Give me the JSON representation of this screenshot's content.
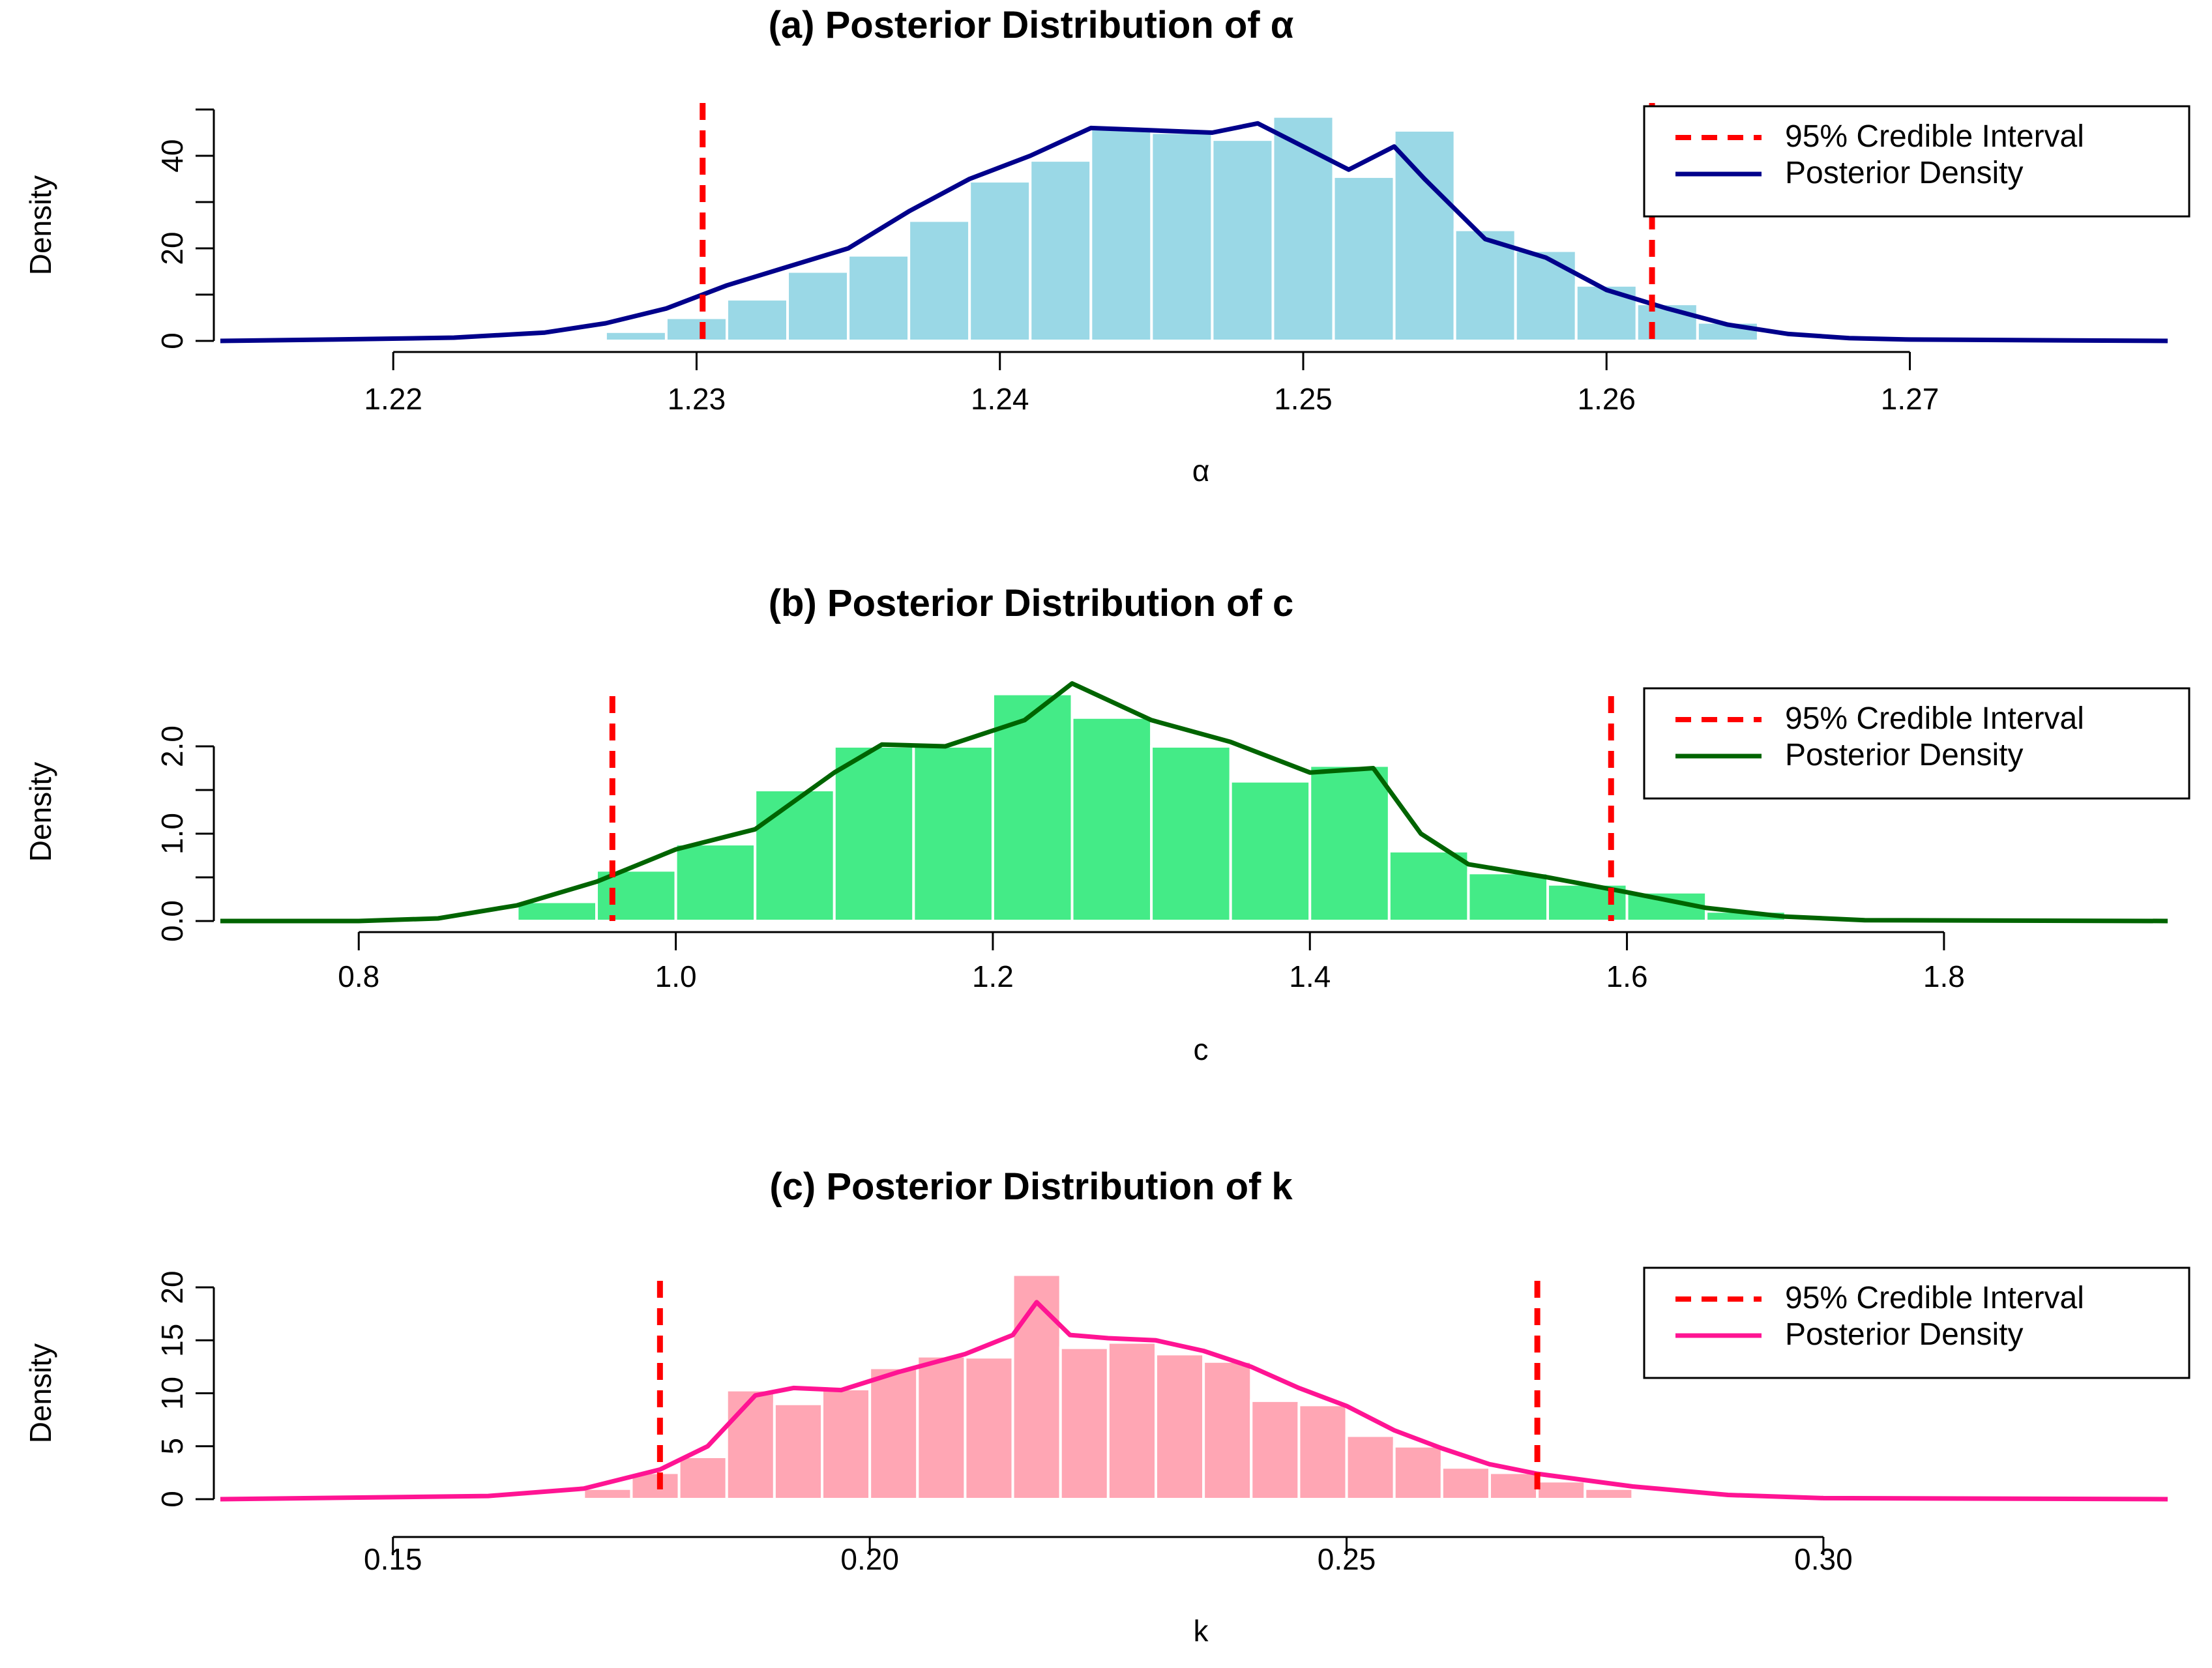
{
  "chart_data": [
    {
      "type": "histogram",
      "title": "(a) Posterior Distribution of α",
      "xlabel": "α",
      "ylabel": "Density",
      "xlim": [
        1.2143,
        1.2785
      ],
      "ylim": [
        0,
        50
      ],
      "xticks": [
        1.22,
        1.23,
        1.24,
        1.25,
        1.26,
        1.27
      ],
      "xtick_labels": [
        "1.22",
        "1.23",
        "1.24",
        "1.25",
        "1.26",
        "1.27"
      ],
      "yticks": [
        0,
        10,
        20,
        30,
        40,
        50
      ],
      "ytick_labels": [
        "0",
        "",
        "20",
        "",
        "40",
        ""
      ],
      "bar_color": "#9ad8e6",
      "line_color": "#00008b",
      "ci_color": "#ff0000",
      "bin_edges": [
        1.225,
        1.227,
        1.229,
        1.231,
        1.233,
        1.235,
        1.237,
        1.239,
        1.241,
        1.243,
        1.245,
        1.247,
        1.249,
        1.251,
        1.253,
        1.255,
        1.257,
        1.259,
        1.261,
        1.263,
        1.265
      ],
      "bar_heights": [
        0.5,
        2,
        5,
        9,
        15,
        18.5,
        26,
        34.5,
        39,
        46,
        45,
        43.5,
        48.5,
        35.5,
        45.5,
        24,
        19.5,
        12,
        8,
        4
      ],
      "density_x": [
        1.2143,
        1.218,
        1.222,
        1.225,
        1.227,
        1.229,
        1.231,
        1.233,
        1.235,
        1.237,
        1.239,
        1.241,
        1.243,
        1.245,
        1.247,
        1.2485,
        1.25,
        1.2515,
        1.253,
        1.254,
        1.256,
        1.258,
        1.26,
        1.262,
        1.264,
        1.266,
        1.268,
        1.27,
        1.2785
      ],
      "density_y": [
        0,
        0.3,
        0.7,
        1.8,
        3.8,
        7,
        12,
        16,
        20,
        28,
        35,
        40,
        46,
        45.5,
        45,
        47,
        42,
        37,
        42,
        35,
        22,
        18,
        11,
        7,
        3.5,
        1.5,
        0.6,
        0.3,
        0
      ],
      "credible_interval": [
        1.2302,
        1.2615
      ],
      "legend": [
        "95% Credible Interval",
        "Posterior Density"
      ],
      "legend_position": "top-right"
    },
    {
      "type": "histogram",
      "title": "(b) Posterior Distribution of c",
      "xlabel": "c",
      "ylabel": "Density",
      "xlim": [
        0.7127,
        1.9411
      ],
      "ylim": [
        0,
        2.5
      ],
      "xticks": [
        0.8,
        1.0,
        1.2,
        1.4,
        1.6,
        1.8
      ],
      "xtick_labels": [
        "0.8",
        "1.0",
        "1.2",
        "1.4",
        "1.6",
        "1.8"
      ],
      "yticks": [
        0,
        0.5,
        1.0,
        1.5,
        2.0
      ],
      "ytick_labels": [
        "0.0",
        "",
        "1.0",
        "",
        "2.0"
      ],
      "bar_color": "#44eb87",
      "line_color": "#006400",
      "ci_color": "#ff0000",
      "bin_edges": [
        0.9,
        0.95,
        1.0,
        1.05,
        1.1,
        1.15,
        1.2,
        1.25,
        1.3,
        1.35,
        1.4,
        1.45,
        1.5,
        1.55,
        1.6,
        1.65,
        1.7
      ],
      "bar_heights": [
        0.22,
        0.58,
        0.88,
        1.5,
        2.0,
        2.0,
        2.6,
        2.33,
        2.0,
        1.6,
        1.78,
        0.8,
        0.55,
        0.42,
        0.33,
        0.11
      ],
      "density_x": [
        0.7127,
        0.8,
        0.85,
        0.9,
        0.95,
        1.0,
        1.05,
        1.1,
        1.13,
        1.17,
        1.22,
        1.25,
        1.3,
        1.35,
        1.4,
        1.44,
        1.47,
        1.5,
        1.55,
        1.6,
        1.65,
        1.7,
        1.75,
        1.9411
      ],
      "density_y": [
        0,
        0,
        0.03,
        0.18,
        0.45,
        0.82,
        1.05,
        1.7,
        2.02,
        2.0,
        2.3,
        2.72,
        2.3,
        2.05,
        1.7,
        1.75,
        1.0,
        0.65,
        0.5,
        0.33,
        0.15,
        0.05,
        0.01,
        0
      ],
      "credible_interval": [
        0.96,
        1.59
      ],
      "legend": [
        "95% Credible Interval",
        "Posterior Density"
      ],
      "legend_position": "top-right"
    },
    {
      "type": "histogram",
      "title": "(c) Posterior Distribution of k",
      "xlabel": "k",
      "ylabel": "Density",
      "xlim": [
        0.1319,
        0.3361
      ],
      "ylim": [
        0,
        20
      ],
      "xticks": [
        0.15,
        0.2,
        0.25,
        0.3
      ],
      "xtick_labels": [
        "0.15",
        "0.20",
        "0.25",
        "0.30"
      ],
      "yticks": [
        0,
        5,
        10,
        15,
        20
      ],
      "ytick_labels": [
        "0",
        "5",
        "10",
        "15",
        "20"
      ],
      "bar_color": "#ffa6b4",
      "line_color": "#ff1493",
      "ci_color": "#ff0000",
      "bin_edges": [
        0.17,
        0.175,
        0.18,
        0.185,
        0.19,
        0.195,
        0.2,
        0.205,
        0.21,
        0.215,
        0.22,
        0.225,
        0.23,
        0.235,
        0.24,
        0.245,
        0.25,
        0.255,
        0.26,
        0.265,
        0.27,
        0.275,
        0.28
      ],
      "bar_heights": [
        1.0,
        2.5,
        4.0,
        10.3,
        9.0,
        10.4,
        12.4,
        13.5,
        13.4,
        21.2,
        14.3,
        14.8,
        13.7,
        13.0,
        9.3,
        8.9,
        6.0,
        5.0,
        3.0,
        2.5,
        1.7,
        1.0
      ],
      "density_x": [
        0.1319,
        0.16,
        0.17,
        0.178,
        0.183,
        0.188,
        0.192,
        0.197,
        0.203,
        0.21,
        0.215,
        0.2175,
        0.221,
        0.225,
        0.23,
        0.235,
        0.24,
        0.245,
        0.25,
        0.255,
        0.26,
        0.265,
        0.27,
        0.28,
        0.29,
        0.3,
        0.3361
      ],
      "density_y": [
        0,
        0.3,
        1.0,
        2.8,
        5.0,
        9.8,
        10.5,
        10.3,
        12.0,
        13.7,
        15.5,
        18.6,
        15.5,
        15.2,
        15.0,
        14.0,
        12.5,
        10.5,
        8.8,
        6.5,
        4.8,
        3.3,
        2.4,
        1.2,
        0.4,
        0.1,
        0
      ],
      "credible_interval": [
        0.178,
        0.27
      ],
      "legend": [
        "95% Credible Interval",
        "Posterior Density"
      ],
      "legend_position": "top-right"
    }
  ]
}
